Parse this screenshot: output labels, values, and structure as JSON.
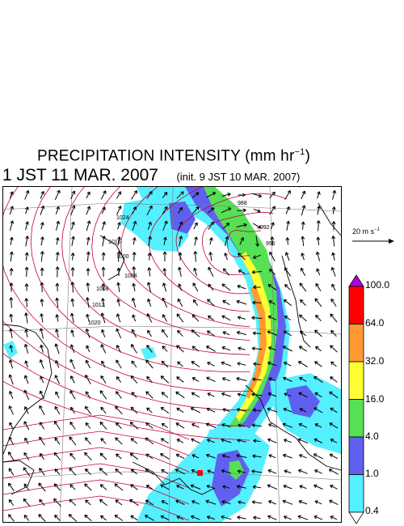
{
  "title": {
    "main": "PRECIPITATION INTENSITY (mm hr",
    "exp": "−1",
    "close": ")"
  },
  "valid_time": "1 JST 11 MAR. 2007",
  "init_time": "(init. 9 JST 10 MAR. 2007)",
  "wind_scale": {
    "label": "20 m s",
    "exp": "−1"
  },
  "colorbar": {
    "levels": [
      "100.0",
      "64.0",
      "32.0",
      "16.0",
      "4.0",
      "1.0",
      "0.4"
    ],
    "colors": {
      "over": "#b000e0",
      "band_64_100": "#ff0000",
      "band_32_64": "#ff9a33",
      "band_16_32": "#ffff33",
      "band_4_16": "#55e055",
      "band_1_4": "#6060f0",
      "band_04_1": "#55f0ff",
      "under": "#ffffff"
    }
  },
  "contour_labels": [
    "988",
    "992",
    "996",
    "1000",
    "1004",
    "1008",
    "1012",
    "1016",
    "1020",
    "1024"
  ],
  "colors": {
    "isobar": "#c8003c",
    "coast": "#000000",
    "grid": "#777777",
    "marker": "#ff0000"
  }
}
